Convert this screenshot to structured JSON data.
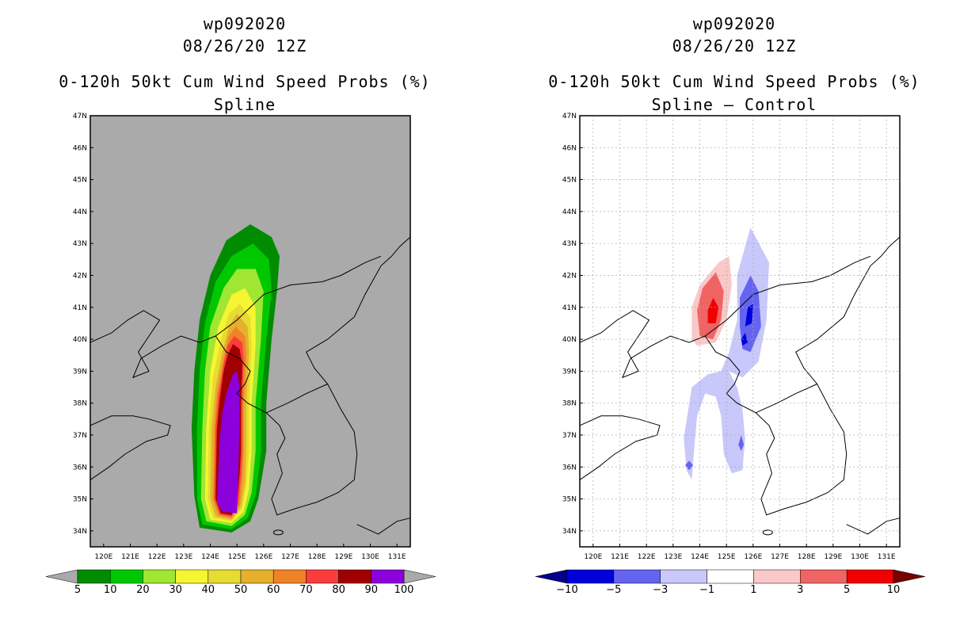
{
  "panels": [
    {
      "storm_id": "wp092020",
      "datetime": "08/26/20 12Z",
      "title": "0-120h 50kt Cum Wind Speed Probs (%)",
      "subtitle": "Spline",
      "background": "#aaaaaa",
      "grid": false
    },
    {
      "storm_id": "wp092020",
      "datetime": "08/26/20 12Z",
      "title": "0-120h 50kt Cum Wind Speed Probs (%)",
      "subtitle": "Spline – Control",
      "background": "#ffffff",
      "grid": true
    }
  ],
  "chart_data": [
    {
      "type": "heatmap",
      "title": "0-120h 50kt Cum Wind Speed Probs (%)",
      "subtitle": "Spline",
      "xlim": [
        119.5,
        131.5
      ],
      "ylim": [
        33.5,
        47
      ],
      "x_ticks": [
        "120E",
        "121E",
        "122E",
        "123E",
        "124E",
        "125E",
        "126E",
        "127E",
        "128E",
        "129E",
        "130E",
        "131E"
      ],
      "y_ticks": [
        "34N",
        "35N",
        "36N",
        "37N",
        "38N",
        "39N",
        "40N",
        "41N",
        "42N",
        "43N",
        "44N",
        "45N",
        "46N",
        "47N"
      ],
      "colorbar": {
        "labels": [
          "5",
          "10",
          "20",
          "30",
          "40",
          "50",
          "60",
          "70",
          "80",
          "90",
          "100"
        ],
        "colors": [
          "#008c00",
          "#00c800",
          "#a0e632",
          "#f5f532",
          "#e6dc32",
          "#e6af2d",
          "#f08228",
          "#fa3c3c",
          "#a00000",
          "#8c00dc"
        ],
        "under_color": "#aaaaaa",
        "over_color": "#aaaaaa"
      },
      "contour_levels": [
        5,
        10,
        20,
        30,
        40,
        50,
        60,
        70,
        80,
        90
      ]
    },
    {
      "type": "heatmap",
      "title": "0-120h 50kt Cum Wind Speed Probs (%)",
      "subtitle": "Spline – Control",
      "xlim": [
        119.5,
        131.5
      ],
      "ylim": [
        33.5,
        47
      ],
      "x_ticks": [
        "120E",
        "121E",
        "122E",
        "123E",
        "124E",
        "125E",
        "126E",
        "127E",
        "128E",
        "129E",
        "130E",
        "131E"
      ],
      "y_ticks": [
        "34N",
        "35N",
        "36N",
        "37N",
        "38N",
        "39N",
        "40N",
        "41N",
        "42N",
        "43N",
        "44N",
        "45N",
        "46N",
        "47N"
      ],
      "colorbar": {
        "labels": [
          "−10",
          "−5",
          "−3",
          "−1",
          "1",
          "3",
          "5",
          "10"
        ],
        "colors": [
          "#0000dc",
          "#6464f0",
          "#c8c8fa",
          "#ffffff",
          "#fac8c8",
          "#f06464",
          "#f00000"
        ],
        "under_color": "#00008c",
        "over_color": "#780000"
      },
      "features": [
        {
          "sign": "positive",
          "label": "red maximum near 124.5E 41N"
        },
        {
          "sign": "negative",
          "label": "blue minimum near 125.8E 40.5N"
        }
      ]
    }
  ]
}
